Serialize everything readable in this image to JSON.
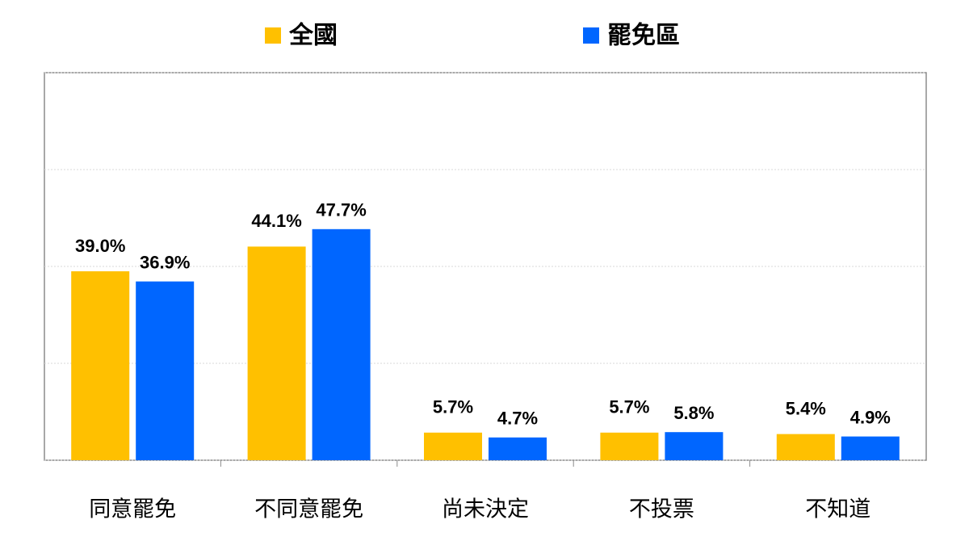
{
  "chart_data": {
    "type": "bar",
    "categories": [
      "同意罷免",
      "不同意罷免",
      "尚未決定",
      "不投票",
      "不知道"
    ],
    "series": [
      {
        "name": "全國",
        "color": "#FFC000",
        "values": [
          39.0,
          44.1,
          5.7,
          5.7,
          5.4
        ],
        "value_labels": [
          "39.0%",
          "44.1%",
          "5.7%",
          "5.7%",
          "5.4%"
        ]
      },
      {
        "name": "罷免區",
        "color": "#0066FF",
        "values": [
          36.9,
          47.7,
          4.7,
          5.8,
          4.9
        ],
        "value_labels": [
          "36.9%",
          "47.7%",
          "4.7%",
          "5.8%",
          "4.9%"
        ]
      }
    ],
    "ylim": [
      0,
      80
    ],
    "yticks": [
      0,
      20,
      40,
      60,
      80
    ],
    "grid": true,
    "legend": "top"
  }
}
